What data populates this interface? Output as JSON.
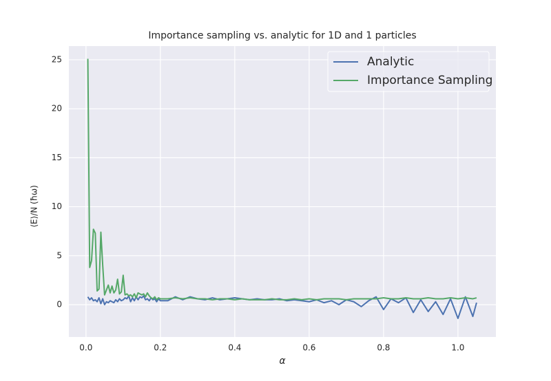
{
  "chart_data": {
    "type": "line",
    "title": "Importance sampling vs. analytic for 1D and 1 particles",
    "x_label": "α",
    "y_label": "⟨E⟩/N (ħω)",
    "x": [
      0.005,
      0.01,
      0.015,
      0.02,
      0.025,
      0.03,
      0.035,
      0.04,
      0.045,
      0.05,
      0.055,
      0.06,
      0.065,
      0.07,
      0.075,
      0.08,
      0.085,
      0.09,
      0.095,
      0.1,
      0.105,
      0.11,
      0.115,
      0.12,
      0.125,
      0.13,
      0.135,
      0.14,
      0.145,
      0.15,
      0.155,
      0.16,
      0.165,
      0.17,
      0.175,
      0.18,
      0.185,
      0.19,
      0.195,
      0.2,
      0.22,
      0.24,
      0.26,
      0.28,
      0.3,
      0.32,
      0.34,
      0.36,
      0.38,
      0.4,
      0.42,
      0.44,
      0.46,
      0.48,
      0.5,
      0.52,
      0.54,
      0.56,
      0.58,
      0.6,
      0.62,
      0.64,
      0.66,
      0.68,
      0.7,
      0.72,
      0.74,
      0.76,
      0.78,
      0.8,
      0.82,
      0.84,
      0.86,
      0.88,
      0.9,
      0.92,
      0.94,
      0.96,
      0.98,
      1.0,
      1.02,
      1.04,
      1.05
    ],
    "series": [
      {
        "name": "Analytic",
        "color": "#4c72b0",
        "values": [
          0.8,
          0.5,
          0.7,
          0.4,
          0.5,
          0.3,
          0.7,
          0.1,
          0.6,
          0.0,
          0.3,
          0.2,
          0.4,
          0.3,
          0.2,
          0.5,
          0.3,
          0.6,
          0.4,
          0.5,
          0.7,
          0.6,
          0.9,
          0.3,
          0.7,
          0.4,
          0.8,
          0.5,
          0.8,
          0.7,
          0.9,
          0.5,
          0.6,
          0.4,
          0.7,
          0.5,
          0.6,
          0.3,
          0.6,
          0.4,
          0.4,
          0.8,
          0.5,
          0.8,
          0.6,
          0.5,
          0.7,
          0.5,
          0.6,
          0.7,
          0.6,
          0.5,
          0.6,
          0.5,
          0.5,
          0.6,
          0.4,
          0.5,
          0.4,
          0.3,
          0.5,
          0.2,
          0.4,
          0.0,
          0.5,
          0.3,
          -0.2,
          0.4,
          0.8,
          -0.5,
          0.6,
          0.2,
          0.7,
          -0.8,
          0.5,
          -0.7,
          0.3,
          -1.0,
          0.6,
          -1.4,
          0.8,
          -1.2,
          0.2
        ]
      },
      {
        "name": "Importance Sampling",
        "color": "#55a868",
        "values": [
          25.1,
          3.8,
          4.5,
          7.7,
          7.3,
          1.4,
          1.6,
          7.4,
          4.0,
          1.0,
          1.5,
          2.0,
          1.2,
          1.9,
          1.2,
          1.5,
          2.6,
          1.1,
          1.3,
          3.0,
          1.0,
          1.1,
          0.9,
          1.0,
          0.8,
          1.1,
          0.7,
          1.2,
          1.1,
          1.0,
          1.1,
          0.8,
          1.2,
          0.9,
          0.7,
          0.6,
          0.8,
          0.5,
          0.7,
          0.6,
          0.6,
          0.7,
          0.6,
          0.7,
          0.6,
          0.6,
          0.5,
          0.6,
          0.6,
          0.5,
          0.6,
          0.5,
          0.5,
          0.5,
          0.6,
          0.5,
          0.5,
          0.6,
          0.5,
          0.6,
          0.5,
          0.6,
          0.6,
          0.6,
          0.5,
          0.6,
          0.6,
          0.6,
          0.6,
          0.7,
          0.6,
          0.6,
          0.7,
          0.6,
          0.6,
          0.7,
          0.6,
          0.6,
          0.7,
          0.6,
          0.7,
          0.6,
          0.7
        ]
      }
    ],
    "xlim": [
      -0.046,
      1.102
    ],
    "ylim": [
      -3.3,
      26.4
    ],
    "xticks": [
      {
        "value": 0,
        "label": "0.0"
      },
      {
        "value": 0.2,
        "label": "0.2"
      },
      {
        "value": 0.4,
        "label": "0.4"
      },
      {
        "value": 0.6,
        "label": "0.6"
      },
      {
        "value": 0.8,
        "label": "0.8"
      },
      {
        "value": 1.0,
        "label": "1.0"
      }
    ],
    "yticks": [
      0,
      5,
      10,
      15,
      20,
      25
    ],
    "grid": true,
    "legend": "upper right"
  }
}
